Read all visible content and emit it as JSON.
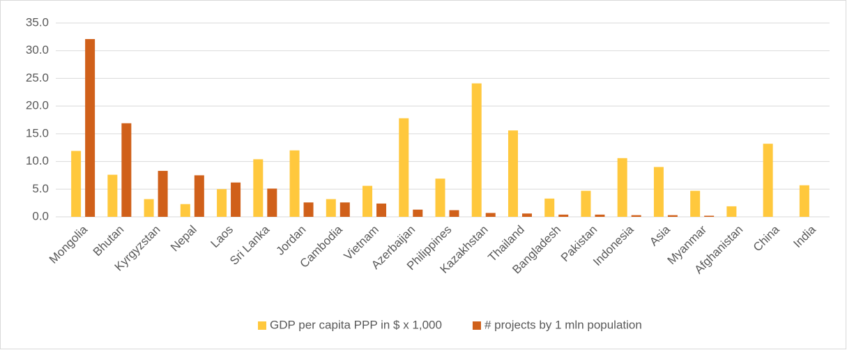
{
  "chart_data": {
    "type": "bar",
    "categories": [
      "Mongolia",
      "Bhutan",
      "Kyrgyzstan",
      "Nepal",
      "Laos",
      "Sri Lanka",
      "Jordan",
      "Cambodia",
      "Vietnam",
      "Azerbaijan",
      "Philippines",
      "Kazakhstan",
      "Thailand",
      "Bangladesh",
      "Pakistan",
      "Indonesia",
      "Asia",
      "Myanmar",
      "Afghanistan",
      "China",
      "India"
    ],
    "series": [
      {
        "name": "GDP per capita PPP in $ x 1,000",
        "color": "#ffc83d",
        "values": [
          11.9,
          7.6,
          3.2,
          2.3,
          5.0,
          10.4,
          12.0,
          3.2,
          5.6,
          17.8,
          6.9,
          24.1,
          15.6,
          3.3,
          4.7,
          10.6,
          9.0,
          4.7,
          1.9,
          13.2,
          5.7
        ]
      },
      {
        "name": "# projects by 1 mln population",
        "color": "#d0601a",
        "values": [
          32.1,
          16.9,
          8.3,
          7.5,
          6.2,
          5.1,
          2.6,
          2.6,
          2.4,
          1.3,
          1.2,
          0.7,
          0.6,
          0.4,
          0.4,
          0.3,
          0.3,
          0.2,
          0,
          0,
          0
        ]
      }
    ],
    "ylim": [
      0,
      35
    ],
    "yticks": [
      {
        "value": 0,
        "label": "0.0"
      },
      {
        "value": 5,
        "label": "5.0"
      },
      {
        "value": 10,
        "label": "10.0"
      },
      {
        "value": 15,
        "label": "15.0"
      },
      {
        "value": 20,
        "label": "20.0"
      },
      {
        "value": 25,
        "label": "25.0"
      },
      {
        "value": 30,
        "label": "30.0"
      },
      {
        "value": 35,
        "label": "35.0"
      }
    ],
    "grid": true,
    "legend": "bottom"
  }
}
